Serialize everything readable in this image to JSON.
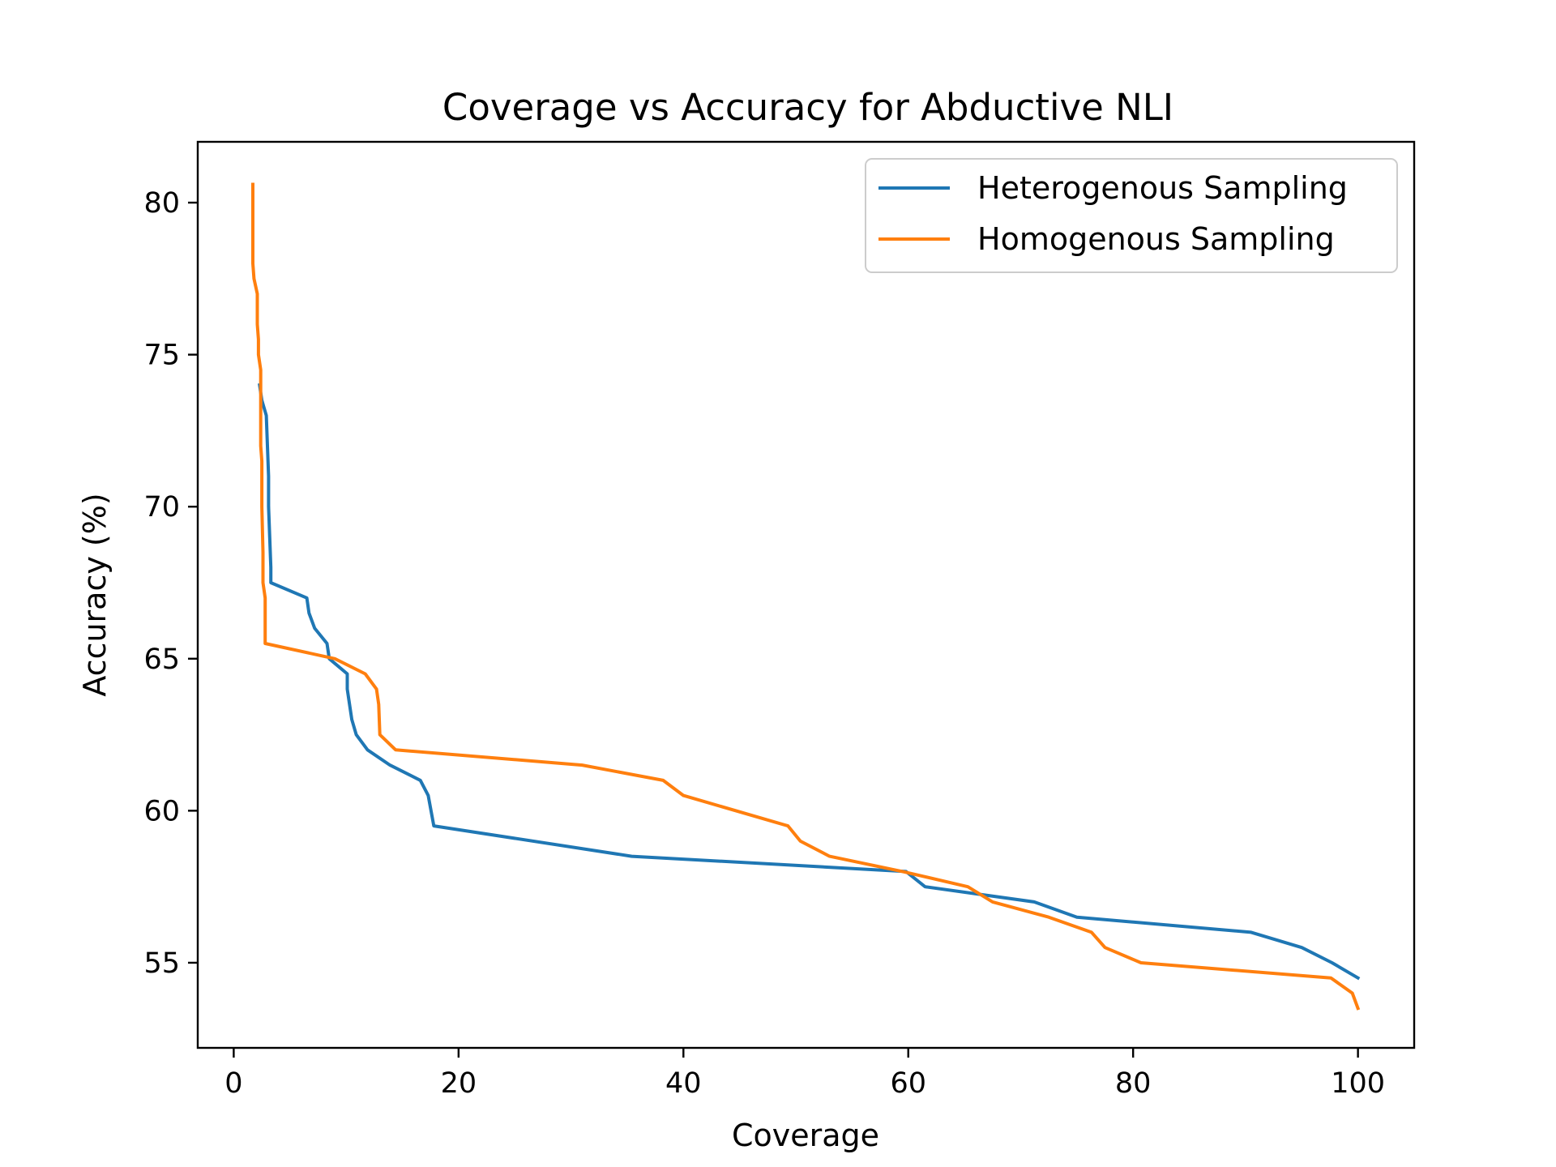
{
  "chart_data": {
    "type": "line",
    "title": "Coverage vs Accuracy for Abductive NLI",
    "xlabel": "Coverage",
    "ylabel": "Accuracy (%)",
    "xlim": [
      -3.2,
      105
    ],
    "ylim": [
      52.2,
      82
    ],
    "xticks": [
      0,
      20,
      40,
      60,
      80,
      100
    ],
    "yticks": [
      55,
      60,
      65,
      70,
      75,
      80
    ],
    "xtick_labels": [
      "0",
      "20",
      "40",
      "60",
      "80",
      "100"
    ],
    "ytick_labels": [
      "55",
      "60",
      "65",
      "70",
      "75",
      "80"
    ],
    "grid": false,
    "legend_position": "top-right",
    "series": [
      {
        "name": "Heterogenous Sampling",
        "color": "#1f77b4",
        "points": [
          [
            2.3,
            74.0
          ],
          [
            2.5,
            73.5
          ],
          [
            2.9,
            73.0
          ],
          [
            3.0,
            72.0
          ],
          [
            3.1,
            71.0
          ],
          [
            3.1,
            70.0
          ],
          [
            3.2,
            69.0
          ],
          [
            3.3,
            68.0
          ],
          [
            3.3,
            67.5
          ],
          [
            6.5,
            67.0
          ],
          [
            6.7,
            66.5
          ],
          [
            7.2,
            66.0
          ],
          [
            8.3,
            65.5
          ],
          [
            8.5,
            65.0
          ],
          [
            10.1,
            64.5
          ],
          [
            10.1,
            64.0
          ],
          [
            10.5,
            63.0
          ],
          [
            10.9,
            62.5
          ],
          [
            11.9,
            62.0
          ],
          [
            13.9,
            61.5
          ],
          [
            16.6,
            61.0
          ],
          [
            17.3,
            60.5
          ],
          [
            17.8,
            59.5
          ],
          [
            35.4,
            58.5
          ],
          [
            59.8,
            58.0
          ],
          [
            61.5,
            57.5
          ],
          [
            71.2,
            57.0
          ],
          [
            75.0,
            56.5
          ],
          [
            90.5,
            56.0
          ],
          [
            95.0,
            55.5
          ],
          [
            97.7,
            55.0
          ],
          [
            100.0,
            54.5
          ]
        ]
      },
      {
        "name": "Homogenous Sampling",
        "color": "#ff7f0e",
        "points": [
          [
            1.7,
            80.6
          ],
          [
            1.7,
            78.0
          ],
          [
            1.8,
            77.5
          ],
          [
            2.1,
            77.0
          ],
          [
            2.1,
            76.0
          ],
          [
            2.2,
            75.5
          ],
          [
            2.2,
            75.0
          ],
          [
            2.4,
            74.5
          ],
          [
            2.4,
            73.5
          ],
          [
            2.4,
            72.0
          ],
          [
            2.5,
            71.5
          ],
          [
            2.5,
            70.0
          ],
          [
            2.6,
            68.5
          ],
          [
            2.6,
            67.5
          ],
          [
            2.8,
            67.0
          ],
          [
            2.8,
            65.5
          ],
          [
            9.0,
            65.0
          ],
          [
            11.7,
            64.5
          ],
          [
            12.7,
            64.0
          ],
          [
            12.9,
            63.5
          ],
          [
            13.0,
            62.5
          ],
          [
            14.4,
            62.0
          ],
          [
            31.0,
            61.5
          ],
          [
            38.2,
            61.0
          ],
          [
            40.0,
            60.5
          ],
          [
            49.3,
            59.5
          ],
          [
            50.4,
            59.0
          ],
          [
            53.0,
            58.5
          ],
          [
            59.5,
            58.0
          ],
          [
            65.3,
            57.5
          ],
          [
            67.5,
            57.0
          ],
          [
            72.5,
            56.5
          ],
          [
            76.3,
            56.0
          ],
          [
            77.5,
            55.5
          ],
          [
            80.7,
            55.0
          ],
          [
            97.6,
            54.5
          ],
          [
            99.5,
            54.0
          ],
          [
            100.0,
            53.5
          ]
        ]
      }
    ]
  }
}
